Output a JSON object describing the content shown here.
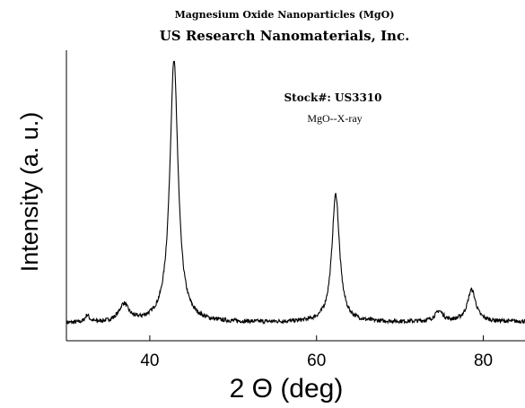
{
  "chart_data": {
    "type": "line",
    "title": "Magnesium Oxide Nanoparticles (MgO)",
    "subtitle": "US Research Nanomaterials, Inc.",
    "xlabel": "2 Θ (deg)",
    "ylabel": "Intensity (a. u.)",
    "xlim": [
      30,
      85
    ],
    "ylim": [
      0,
      100
    ],
    "x_ticks": [
      40,
      60,
      80
    ],
    "x_tick_labels": [
      "40",
      "60",
      "80"
    ],
    "y_tick_labels_visible": false,
    "grid": false,
    "annotations": [
      "Stock#: US3310",
      "MgO--X-ray"
    ],
    "series": [
      {
        "color": "#000000",
        "baseline": 6,
        "peaks": [
          {
            "x": 32.5,
            "height": 2.5,
            "width": 0.3
          },
          {
            "x": 36.9,
            "height": 6,
            "width": 0.7
          },
          {
            "x": 42.9,
            "height": 90,
            "width": 0.6
          },
          {
            "x": 62.3,
            "height": 44,
            "width": 0.55
          },
          {
            "x": 74.7,
            "height": 3.5,
            "width": 0.6
          },
          {
            "x": 78.6,
            "height": 11,
            "width": 0.6
          }
        ]
      }
    ]
  }
}
